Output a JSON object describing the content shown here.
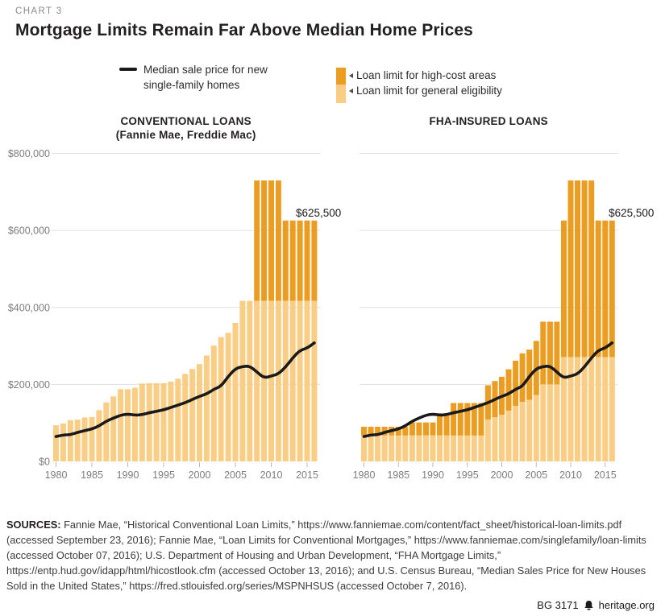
{
  "kicker": "CHART 3",
  "title": "Mortgage Limits Remain Far Above Median Home Prices",
  "legend": {
    "median_label": "Median sale price for new\nsingle-family homes",
    "high_cost_label": "Loan limit for high-cost areas",
    "general_label": "Loan limit for general eligibility"
  },
  "chart_data": {
    "type": "bar",
    "x": [
      1980,
      1981,
      1982,
      1983,
      1984,
      1985,
      1986,
      1987,
      1988,
      1989,
      1990,
      1991,
      1992,
      1993,
      1994,
      1995,
      1996,
      1997,
      1998,
      1999,
      2000,
      2001,
      2002,
      2003,
      2004,
      2005,
      2006,
      2007,
      2008,
      2009,
      2010,
      2011,
      2012,
      2013,
      2014,
      2015,
      2016
    ],
    "x_ticks": [
      1980,
      1985,
      1990,
      1995,
      2000,
      2005,
      2010,
      2015
    ],
    "y_ticks": [
      {
        "value": 0,
        "label": "$0"
      },
      {
        "value": 200000,
        "label": "$200,000"
      },
      {
        "value": 400000,
        "label": "$400,000"
      },
      {
        "value": 600000,
        "label": "$600,000"
      },
      {
        "value": 800000,
        "label": "$800,000"
      }
    ],
    "ylim": [
      0,
      800000
    ],
    "grid": "horizontal",
    "legend_position": "top",
    "annotation": "$625,500",
    "median_series": {
      "name": "Median sale price for new single-family homes",
      "values": [
        64600,
        68900,
        69300,
        75300,
        79900,
        84300,
        92000,
        104500,
        112500,
        120000,
        122900,
        120000,
        121500,
        126500,
        130000,
        133900,
        140000,
        146000,
        152500,
        161000,
        169000,
        175200,
        187600,
        195000,
        221000,
        240900,
        246500,
        247900,
        232100,
        216700,
        221800,
        227200,
        245200,
        268900,
        288400,
        294200,
        307800
      ]
    },
    "panels": [
      {
        "title_lines": [
          "CONVENTIONAL LOANS",
          "(Fannie Mae, Freddie Mac)"
        ],
        "series": [
          {
            "name": "Loan limit for general eligibility",
            "values": [
              93750,
              98500,
              107000,
              108300,
              114000,
              115300,
              133250,
              153100,
              168700,
              187600,
              187450,
              191250,
              202300,
              203150,
              203150,
              203150,
              207000,
              214600,
              227150,
              240000,
              252700,
              275000,
              300700,
              322700,
              333700,
              359650,
              417000,
              417000,
              417000,
              417000,
              417000,
              417000,
              417000,
              417000,
              417000,
              417000,
              417000
            ]
          },
          {
            "name": "Loan limit for high-cost areas",
            "values": [
              null,
              null,
              null,
              null,
              null,
              null,
              null,
              null,
              null,
              null,
              null,
              null,
              null,
              null,
              null,
              null,
              null,
              null,
              null,
              null,
              null,
              null,
              null,
              null,
              null,
              null,
              null,
              null,
              729750,
              729750,
              729750,
              729750,
              625500,
              625500,
              625500,
              625500,
              625500
            ]
          }
        ]
      },
      {
        "title_lines": [
          "FHA-INSURED LOANS"
        ],
        "series": [
          {
            "name": "Loan limit for general eligibility",
            "values": [
              67500,
              67500,
              67500,
              67500,
              67500,
              67500,
              67500,
              67500,
              67500,
              67500,
              67500,
              67500,
              67500,
              67500,
              67500,
              67500,
              67500,
              67500,
              109032,
              115200,
              121296,
              132000,
              144336,
              154896,
              160176,
              172632,
              200160,
              200160,
              200160,
              271050,
              271050,
              271050,
              271050,
              271050,
              271050,
              271050,
              271050
            ]
          },
          {
            "name": "Loan limit for high-cost areas",
            "values": [
              90000,
              90000,
              90000,
              90000,
              90000,
              90000,
              90000,
              101250,
              101250,
              101250,
              101250,
              124875,
              124875,
              151725,
              151725,
              151725,
              151725,
              151725,
              197621,
              208800,
              219849,
              239250,
              261609,
              280749,
              290319,
              312895,
              362790,
              362790,
              362790,
              625500,
              729750,
              729750,
              729750,
              729750,
              625500,
              625500,
              625500
            ]
          }
        ]
      }
    ],
    "colors": {
      "high_cost": "#EB9D22",
      "general": "#FACD85",
      "median_line": "#1A1A1A",
      "grid": "#E0E0E0",
      "axis_text": "#7D7D7D",
      "tick": "#BBBBBB",
      "text": "#231F20"
    }
  },
  "sources": {
    "label": "SOURCES:",
    "lines": [
      "Fannie Mae, “Historical Conventional Loan Limits,” https://www.fanniemae.com/content/fact_sheet/historical-loan-limits.pdf",
      "(accessed September 23, 2016); Fannie Mae, “Loan Limits for Conventional Mortgages,” https://www.fanniemae.com/singlefamily/loan-limits",
      "(accessed October 07, 2016); U.S. Department of Housing and Urban Development, “FHA Mortgage Limits,”",
      "https://entp.hud.gov/idapp/html/hicostlook.cfm (accessed October 13, 2016); and U.S. Census Bureau, “Median Sales Price for New Houses",
      "Sold in the United States,” https://fred.stlouisfed.org/series/MSPNHSUS (accessed October 7, 2016)."
    ]
  },
  "footer": {
    "id": "BG 3171",
    "site": "heritage.org"
  }
}
